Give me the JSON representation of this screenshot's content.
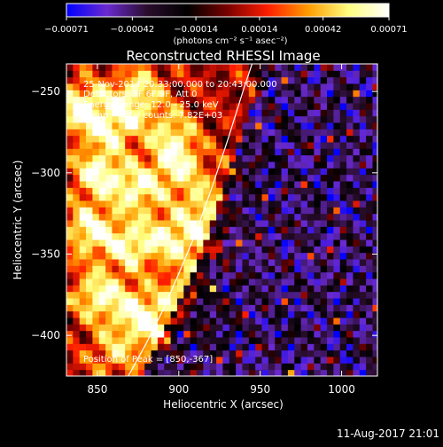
{
  "chart_data": {
    "type": "heatmap",
    "title": "Reconstructed RHESSI Image",
    "xlabel": "Heliocentric X (arcsec)",
    "ylabel": "Heliocentric Y (arcsec)",
    "xlim": [
      831,
      1022
    ],
    "ylim": [
      -425,
      -233
    ],
    "x_ticks": [
      850,
      900,
      950,
      1000
    ],
    "y_ticks": [
      -400,
      -350,
      -300,
      -250
    ],
    "x_tick_labels": [
      "850",
      "900",
      "950",
      "1000"
    ],
    "y_tick_labels": [
      "−400",
      "−350",
      "−300",
      "−250"
    ],
    "colorbar": {
      "range": [
        -0.00071,
        0.00071
      ],
      "ticks": [
        -0.00071,
        -0.00042,
        -0.00014,
        0.00014,
        0.00042,
        0.00071
      ],
      "tick_labels": [
        "−0.00071",
        "−0.00042",
        "−0.00014",
        "0.00014",
        "0.00042",
        "0.00071"
      ],
      "unit_label": "(photons cm⁻² s⁻¹ asec⁻²)",
      "colormap": [
        "#0000ff",
        "#6a2ad0",
        "#2a0d2d",
        "#000000",
        "#7a0000",
        "#ff1e00",
        "#ff9c00",
        "#ffff80",
        "#ffffff"
      ]
    },
    "annotations": [
      "25-Nov-2014 20:33:00.000 to 20:43:00.000",
      "Detectors: 3F 6F 9F, Att 0",
      "Energy Range: 12.0 - 25.0 keV",
      "Clean    Total counts: 7.82E+03"
    ],
    "peak_label": "Position of Peak = [850,-367]",
    "peak": [
      850,
      -367
    ],
    "limb_curve": [
      [
        869,
        -425
      ],
      [
        880,
        -405
      ],
      [
        890,
        -385
      ],
      [
        900,
        -362
      ],
      [
        910,
        -338
      ],
      [
        920,
        -310
      ],
      [
        930,
        -280
      ],
      [
        940,
        -248
      ],
      [
        945,
        -233
      ]
    ],
    "hot_blobs": [
      [
        840,
        -260,
        1.0
      ],
      [
        860,
        -270,
        0.9
      ],
      [
        875,
        -250,
        0.8
      ],
      [
        895,
        -275,
        0.7
      ],
      [
        850,
        -300,
        0.95
      ],
      [
        875,
        -310,
        0.9
      ],
      [
        900,
        -295,
        0.8
      ],
      [
        915,
        -320,
        0.7
      ],
      [
        845,
        -335,
        0.95
      ],
      [
        870,
        -345,
        0.85
      ],
      [
        895,
        -340,
        0.8
      ],
      [
        920,
        -345,
        0.7
      ],
      [
        850,
        -375,
        0.9
      ],
      [
        875,
        -385,
        0.85
      ],
      [
        905,
        -375,
        0.75
      ],
      [
        930,
        -385,
        0.6
      ],
      [
        860,
        -410,
        0.6
      ],
      [
        890,
        -400,
        0.65
      ],
      [
        925,
        -410,
        0.55
      ],
      [
        945,
        -300,
        0.35
      ]
    ]
  },
  "footer": {
    "timestamp": "11-Aug-2017 21:01"
  }
}
